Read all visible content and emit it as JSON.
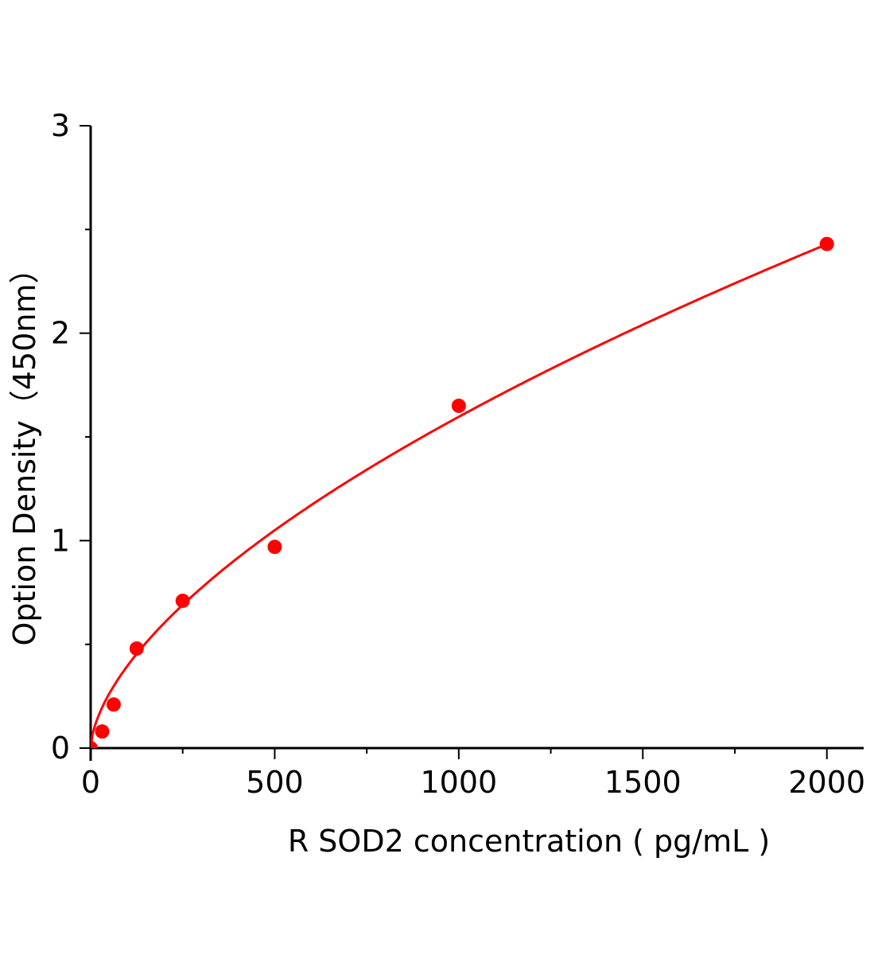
{
  "chart_data": {
    "type": "scatter",
    "title": "",
    "xlabel": "R SOD2 concentration ( pg/mL )",
    "ylabel": "Option Density（450nm）",
    "xlim": [
      0,
      2100
    ],
    "ylim": [
      0,
      3
    ],
    "x_ticks": [
      0,
      500,
      1000,
      1500,
      2000
    ],
    "x_minor_step": 250,
    "y_ticks": [
      0,
      1,
      2,
      3
    ],
    "y_minor_step": 0.5,
    "grid": false,
    "legend": "none",
    "color": "#ff0000",
    "points": [
      {
        "x": 0,
        "y": 0
      },
      {
        "x": 31.25,
        "y": 0.08
      },
      {
        "x": 62.5,
        "y": 0.21
      },
      {
        "x": 125,
        "y": 0.48
      },
      {
        "x": 250,
        "y": 0.71
      },
      {
        "x": 500,
        "y": 0.97
      },
      {
        "x": 1000,
        "y": 1.65
      },
      {
        "x": 2000,
        "y": 2.43
      }
    ],
    "fit": {
      "type": "power",
      "a": 0.02445,
      "b": 0.605
    }
  }
}
